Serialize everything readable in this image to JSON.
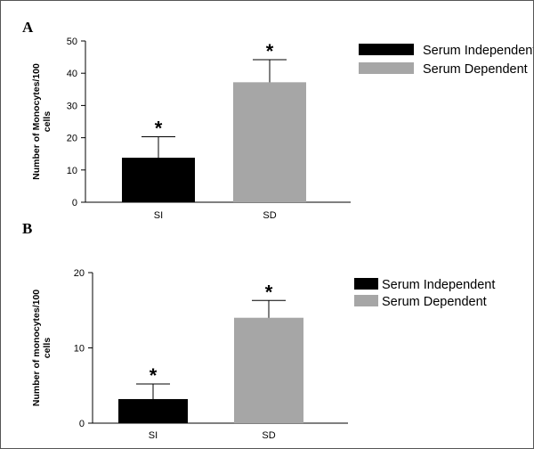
{
  "colors": {
    "serum_independent": "#000000",
    "serum_dependent": "#a6a6a6",
    "axis": "#000000"
  },
  "chart_data": [
    {
      "panel": "A",
      "type": "bar",
      "categories": [
        "SI",
        "SD"
      ],
      "ylabel": "Number of Monocytes/100 cells",
      "ylim": [
        0,
        50
      ],
      "yticks": [
        0,
        10,
        20,
        30,
        40,
        50
      ],
      "series": [
        {
          "name": "Serum Independent",
          "values": [
            13.8,
            null
          ],
          "error": [
            6.5,
            null
          ]
        },
        {
          "name": "Serum Dependent",
          "values": [
            null,
            37.2
          ],
          "error": [
            null,
            7.0
          ]
        }
      ],
      "annotations": [
        "*",
        "*"
      ],
      "legend": {
        "position": "top-right",
        "entries": [
          "Serum Independent",
          "Serum Dependent"
        ]
      }
    },
    {
      "panel": "B",
      "type": "bar",
      "categories": [
        "SI",
        "SD"
      ],
      "ylabel": "Number of monocytes/100 cells",
      "ylim": [
        0,
        20
      ],
      "yticks": [
        0,
        10,
        20
      ],
      "series": [
        {
          "name": "Serum Independent",
          "values": [
            3.2,
            null
          ],
          "error": [
            2.0,
            null
          ]
        },
        {
          "name": "Serum Dependent",
          "values": [
            null,
            14.0
          ],
          "error": [
            null,
            2.3
          ]
        }
      ],
      "annotations": [
        "*",
        "*"
      ],
      "legend": {
        "position": "top-right",
        "entries": [
          "Serum Independent",
          "Serum Dependent"
        ]
      }
    }
  ]
}
